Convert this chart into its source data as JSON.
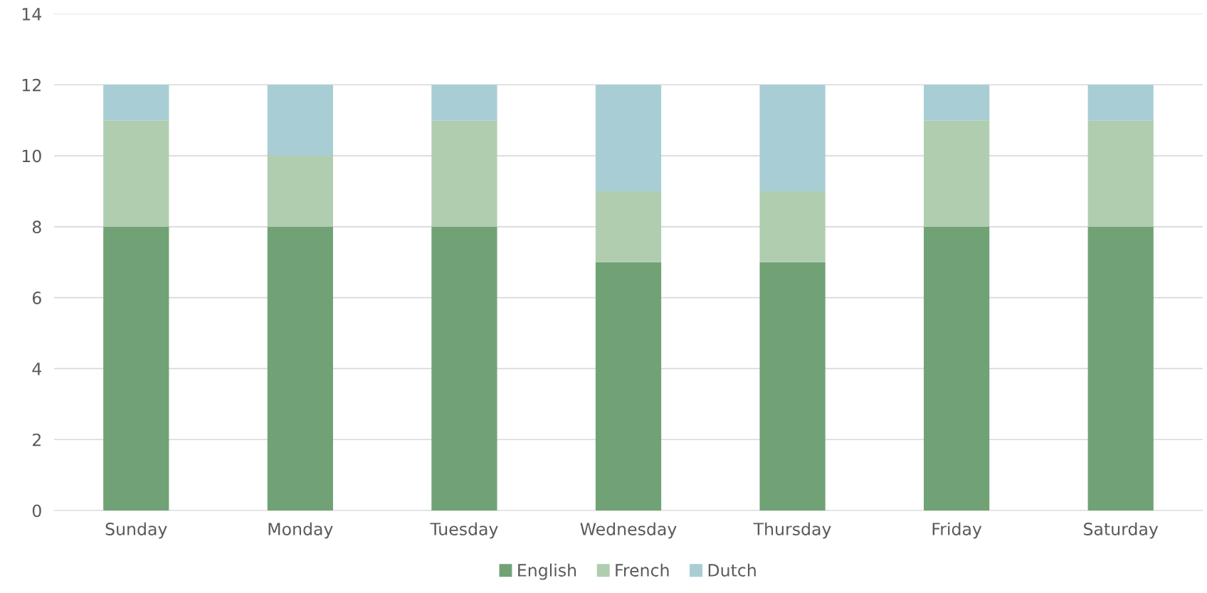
{
  "chart_data": {
    "type": "bar",
    "stacked": true,
    "categories": [
      "Sunday",
      "Monday",
      "Tuesday",
      "Wednesday",
      "Thursday",
      "Friday",
      "Saturday"
    ],
    "series": [
      {
        "name": "English",
        "color": "#70a275",
        "values": [
          8,
          8,
          8,
          7,
          7,
          8,
          8
        ]
      },
      {
        "name": "French",
        "color": "#b0cdb0",
        "values": [
          3,
          2,
          3,
          2,
          2,
          3,
          3
        ]
      },
      {
        "name": "Dutch",
        "color": "#a8cdd5",
        "values": [
          1,
          2,
          1,
          3,
          3,
          1,
          1
        ]
      }
    ],
    "ylim": [
      0,
      14
    ],
    "yticks": [
      0,
      2,
      4,
      6,
      8,
      10,
      12,
      14
    ],
    "grid": "y",
    "legend": "bottom"
  }
}
